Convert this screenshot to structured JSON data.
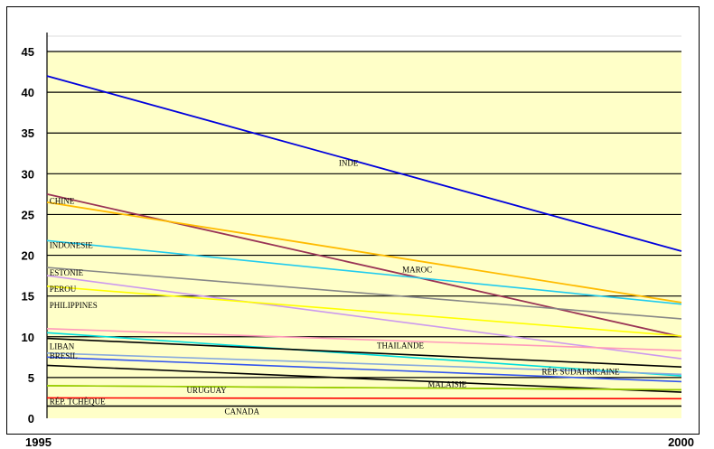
{
  "chart_data": {
    "type": "line",
    "title": "",
    "xlabel": "",
    "ylabel": "",
    "x": [
      "1995",
      "2000"
    ],
    "ylim": [
      0,
      45
    ],
    "yticks": [
      0,
      5,
      10,
      15,
      20,
      25,
      30,
      35,
      40,
      45
    ],
    "grid": true,
    "legend": "none",
    "plot_background": "#ffffc8",
    "series": [
      {
        "name": "INDE",
        "values": [
          42,
          20.5
        ],
        "color": "#0000dd"
      },
      {
        "name": "MAROC",
        "values": [
          27.5,
          10
        ],
        "color": "#993355"
      },
      {
        "name": "CHINE",
        "values": [
          26.5,
          14.2
        ],
        "color": "#ffbb00"
      },
      {
        "name": "INDONESIE",
        "values": [
          21.8,
          14
        ],
        "color": "#22ccee"
      },
      {
        "name": "ESTONIE",
        "values": [
          18.5,
          12.2
        ],
        "color": "#888888"
      },
      {
        "name": "",
        "values": [
          17.5,
          7.3
        ],
        "color": "#cc99ee"
      },
      {
        "name": "PEROU",
        "values": [
          16.2,
          10.1
        ],
        "color": "#ffff00"
      },
      {
        "name": "PHILIPPINES",
        "values": [
          11,
          8.3
        ],
        "color": "#ff99bb"
      },
      {
        "name": "",
        "values": [
          10.5,
          5.2
        ],
        "color": "#00dddd"
      },
      {
        "name": "THAILANDE",
        "values": [
          9.8,
          6.3
        ],
        "color": "#000000"
      },
      {
        "name": "LIBAN",
        "values": [
          8,
          5.4
        ],
        "color": "#88aadd"
      },
      {
        "name": "BRESIL",
        "values": [
          7.5,
          4.5
        ],
        "color": "#3355ee"
      },
      {
        "name": "RÉP. SUDAFRICAINE",
        "values": [
          6.5,
          3.2
        ],
        "color": "#000000"
      },
      {
        "name": "URUGUAY",
        "values": [
          4,
          3.5
        ],
        "color": "#99cc00"
      },
      {
        "name": "MALAISIE",
        "values": [
          4,
          3.5
        ],
        "color": "#99cc00"
      },
      {
        "name": "RÉP. TCHÈQUE",
        "values": [
          2.5,
          2.4
        ],
        "color": "#ff0000"
      },
      {
        "name": "CANADA",
        "values": [
          1.5,
          1.5
        ],
        "color": "#000000"
      }
    ],
    "labels": [
      {
        "text": "INDE",
        "x": 1997.3,
        "y": 31
      },
      {
        "text": "CHINE",
        "x": 1995.02,
        "y": 26.3
      },
      {
        "text": "MAROC",
        "x": 1997.8,
        "y": 17.9
      },
      {
        "text": "INDONESIE",
        "x": 1995.02,
        "y": 20.9
      },
      {
        "text": "ESTONIE",
        "x": 1995.02,
        "y": 17.5
      },
      {
        "text": "PEROU",
        "x": 1995.02,
        "y": 15.5
      },
      {
        "text": "PHILIPPINES",
        "x": 1995.02,
        "y": 13.5
      },
      {
        "text": "LIBAN",
        "x": 1995.02,
        "y": 8.5
      },
      {
        "text": "BRESIL",
        "x": 1995.02,
        "y": 7.3
      },
      {
        "text": "THAILANDE",
        "x": 1997.6,
        "y": 8.6
      },
      {
        "text": "RÉP. SUDAFRICAINE",
        "x": 1998.9,
        "y": 5.4
      },
      {
        "text": "MALAISIE",
        "x": 1998.0,
        "y": 3.8
      },
      {
        "text": "URUGUAY",
        "x": 1996.1,
        "y": 3.1
      },
      {
        "text": "RÉP. TCHÈQUE",
        "x": 1995.02,
        "y": 1.7
      },
      {
        "text": "CANADA",
        "x": 1996.4,
        "y": 0.5
      }
    ]
  }
}
